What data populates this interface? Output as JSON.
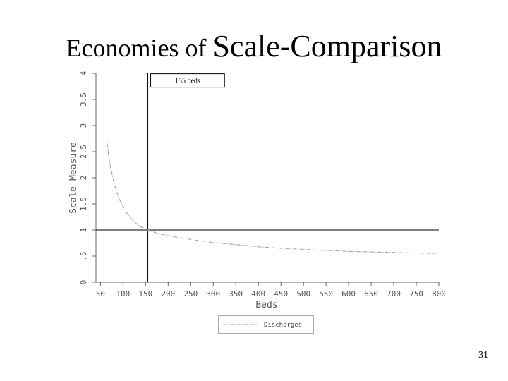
{
  "slide": {
    "title_part1": "Economies of ",
    "title_part2": "Scale-Comparison",
    "page_number": "31"
  },
  "chart_data": {
    "type": "line",
    "xlabel": "Beds",
    "ylabel": "Scale Measure",
    "xlim": [
      40,
      800
    ],
    "ylim": [
      0,
      4
    ],
    "x_ticks": [
      "50",
      "100",
      "150",
      "200",
      "250",
      "300",
      "350",
      "400",
      "450",
      "500",
      "550",
      "600",
      "650",
      "700",
      "750",
      "800"
    ],
    "y_ticks": [
      "0",
      ".5",
      "1",
      "1.5",
      "2",
      "2.5",
      "3",
      "3.5",
      "4"
    ],
    "grid": false,
    "legend_position": "bottom",
    "series": [
      {
        "name": "Discharges",
        "color": "#999999",
        "style": "dash-dot",
        "x": [
          65,
          70,
          80,
          90,
          100,
          110,
          120,
          130,
          140,
          155,
          175,
          200,
          250,
          300,
          350,
          400,
          450,
          500,
          550,
          600,
          650,
          700,
          750,
          790
        ],
        "y": [
          2.65,
          2.3,
          1.9,
          1.62,
          1.45,
          1.3,
          1.2,
          1.12,
          1.06,
          1.0,
          0.94,
          0.89,
          0.82,
          0.76,
          0.72,
          0.68,
          0.65,
          0.63,
          0.61,
          0.59,
          0.58,
          0.57,
          0.56,
          0.55
        ]
      }
    ],
    "reference_lines": {
      "vertical_x": 155,
      "horizontal_y": 1
    },
    "annotation": {
      "text": "155 beds",
      "x_start": 155,
      "x_end": 325,
      "y": 3.87
    }
  }
}
